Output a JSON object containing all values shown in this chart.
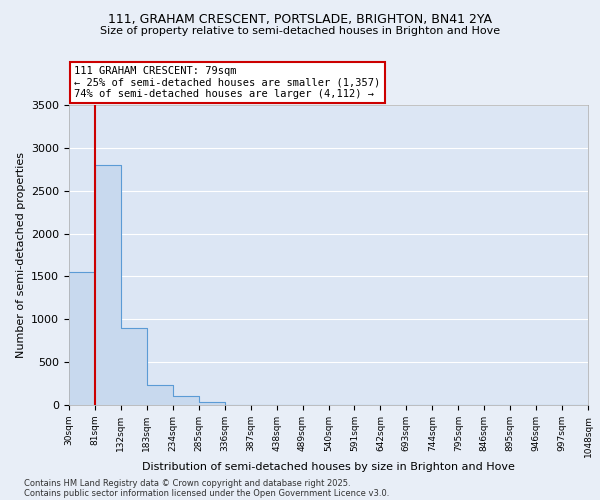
{
  "title1": "111, GRAHAM CRESCENT, PORTSLADE, BRIGHTON, BN41 2YA",
  "title2": "Size of property relative to semi-detached houses in Brighton and Hove",
  "xlabel": "Distribution of semi-detached houses by size in Brighton and Hove",
  "ylabel": "Number of semi-detached properties",
  "annotation_line1": "111 GRAHAM CRESCENT: 79sqm",
  "annotation_line2": "← 25% of semi-detached houses are smaller (1,357)",
  "annotation_line3": "74% of semi-detached houses are larger (4,112) →",
  "footer1": "Contains HM Land Registry data © Crown copyright and database right 2025.",
  "footer2": "Contains public sector information licensed under the Open Government Licence v3.0.",
  "bin_labels": [
    "30sqm",
    "81sqm",
    "132sqm",
    "183sqm",
    "234sqm",
    "285sqm",
    "336sqm",
    "387sqm",
    "438sqm",
    "489sqm",
    "540sqm",
    "591sqm",
    "642sqm",
    "693sqm",
    "744sqm",
    "795sqm",
    "846sqm",
    "895sqm",
    "946sqm",
    "997sqm",
    "1048sqm"
  ],
  "bar_values": [
    1550,
    2800,
    900,
    230,
    110,
    40,
    5,
    0,
    0,
    0,
    0,
    0,
    0,
    0,
    0,
    0,
    0,
    0,
    0,
    0
  ],
  "bar_color": "#c8d9ee",
  "bar_edge_color": "#5b9bd5",
  "annotation_box_color": "#cc0000",
  "property_bin": 0,
  "ylim": [
    0,
    3500
  ],
  "yticks": [
    0,
    500,
    1000,
    1500,
    2000,
    2500,
    3000,
    3500
  ],
  "bg_color": "#e8eef7",
  "grid_color": "#ffffff",
  "chart_bg": "#dce6f4"
}
